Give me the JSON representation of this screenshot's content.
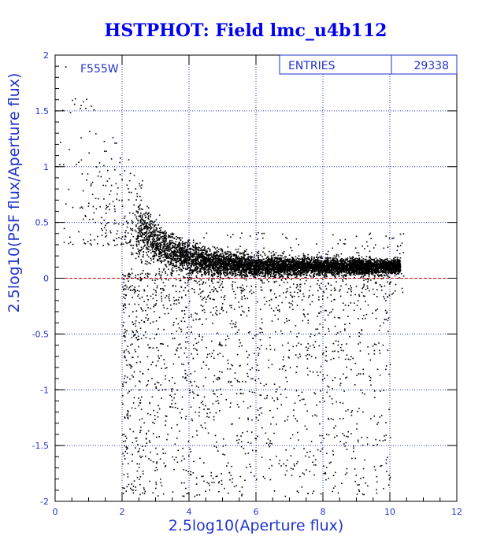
{
  "chart_data": {
    "type": "scatter",
    "title": "HSTPHOT: Field lmc_u4b112",
    "xlabel": "2.5log10(Aperture flux)",
    "ylabel": "2.5log10(PSF flux/Aperture flux)",
    "xlim": [
      0,
      12
    ],
    "ylim": [
      -2,
      2
    ],
    "x_ticks": [
      "0",
      "2",
      "4",
      "6",
      "8",
      "10",
      "12"
    ],
    "y_ticks": [
      "-2",
      "-1.5",
      "-1",
      "-0.5",
      "0",
      "0.5",
      "1",
      "1.5",
      "2"
    ],
    "grid": true,
    "reference_line": {
      "y": 0,
      "color": "#cc0000",
      "style": "dashed"
    },
    "filter_label": "F555W",
    "stats_box": {
      "label": "ENTRIES",
      "value": "29338"
    },
    "entries": 29338,
    "series": [
      {
        "color": "#000000",
        "distribution": "dense band from x≈2.4 to x≈10.3 near y≈0.1, sloping from y≈0.5 at x≈2.5 to y≈0.1 at x≈10; sparse tail below down to y≈-2 between x≈2 and x≈10; sparse scatter above at x<2.5 up to y≈2",
        "sample_points": [
          [
            2.5,
            0.45
          ],
          [
            3.0,
            0.3
          ],
          [
            3.5,
            0.22
          ],
          [
            4.0,
            0.18
          ],
          [
            5.0,
            0.15
          ],
          [
            6.0,
            0.13
          ],
          [
            7.0,
            0.12
          ],
          [
            8.0,
            0.12
          ],
          [
            9.0,
            0.12
          ],
          [
            9.8,
            0.12
          ],
          [
            10.3,
            0.08
          ],
          [
            0.3,
            1.9
          ],
          [
            0.5,
            1.6
          ],
          [
            1.2,
            1.3
          ],
          [
            1.6,
            0.9
          ],
          [
            3.0,
            -0.5
          ],
          [
            4.0,
            -1.0
          ],
          [
            5.0,
            -1.5
          ],
          [
            6.0,
            -1.8
          ],
          [
            9.0,
            -1.3
          ]
        ]
      }
    ],
    "colors": {
      "axis_text": "#2233cc",
      "grid": "#2233cc",
      "title": "#0000ee",
      "points": "#000000",
      "zero_line": "#cc0000"
    }
  }
}
